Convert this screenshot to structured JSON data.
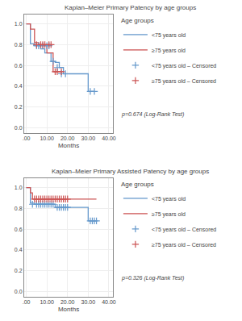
{
  "chart_data": [
    {
      "type": "step",
      "title": "Kaplan–Meier Primary Patency by age groups",
      "xlabel": "Months",
      "xlim": [
        -1,
        42
      ],
      "ylim": [
        -0.05,
        1.09
      ],
      "xticks": [
        {
          "value": 0,
          "label": ".00"
        },
        {
          "value": 10,
          "label": "10.00"
        },
        {
          "value": 20,
          "label": "20.00"
        },
        {
          "value": 30,
          "label": "30.00"
        },
        {
          "value": 40,
          "label": "40.00"
        }
      ],
      "yticks": [
        {
          "value": 0.0,
          "label": "0.0"
        },
        0.2,
        0.4,
        0.6,
        0.8,
        {
          "value": 1.0,
          "label": "1.0"
        }
      ],
      "grid": true,
      "legend": "right",
      "legend_title": "Age groups",
      "annotations": [
        "p=0.674 (Log-Rank Test)"
      ],
      "series": [
        {
          "name": "<75 years old",
          "color": "#6699CC",
          "x": [
            0,
            2,
            4,
            7,
            9,
            12,
            14,
            16,
            18,
            30,
            33
          ],
          "values": [
            1.0,
            0.81,
            0.79,
            0.76,
            0.72,
            0.64,
            0.63,
            0.58,
            0.52,
            0.35,
            0.35
          ]
        },
        {
          "name": "≥75 years old",
          "color": "#CC5555",
          "x": [
            0,
            2,
            4,
            6,
            10,
            13,
            16,
            18
          ],
          "values": [
            1.0,
            0.95,
            0.82,
            0.8,
            0.72,
            0.54,
            0.54,
            0.54
          ]
        },
        {
          "name": "<75 years old – Censored",
          "color": "#6699CC",
          "type": "scatter",
          "marker": "cross",
          "x": [
            5,
            6,
            8,
            10,
            11,
            13,
            15,
            17,
            19,
            31,
            33
          ],
          "values": [
            0.79,
            0.79,
            0.79,
            0.79,
            0.79,
            0.64,
            0.58,
            0.52,
            0.52,
            0.35,
            0.35
          ]
        },
        {
          "name": "≥75 years old – Censored",
          "color": "#CC5555",
          "type": "scatter",
          "marker": "cross",
          "x": [
            5,
            7,
            8,
            9,
            11,
            12,
            14,
            15,
            17
          ],
          "values": [
            0.8,
            0.8,
            0.8,
            0.8,
            0.8,
            0.8,
            0.54,
            0.54,
            0.54
          ]
        }
      ]
    },
    {
      "type": "step",
      "title": "Kaplan–Meier Primary Assisted Patency by age groups",
      "xlabel": "Months",
      "xlim": [
        -1,
        42
      ],
      "ylim": [
        -0.05,
        1.09
      ],
      "xticks": [
        {
          "value": 0,
          "label": ".00"
        },
        {
          "value": 10,
          "label": "10.00"
        },
        {
          "value": 20,
          "label": "20.00"
        },
        {
          "value": 30,
          "label": "30.00"
        },
        {
          "value": 40,
          "label": "40.00"
        }
      ],
      "yticks": [
        {
          "value": 0.0,
          "label": "0.0"
        },
        0.2,
        0.4,
        0.6,
        0.8,
        {
          "value": 1.0,
          "label": "1.0"
        }
      ],
      "grid": true,
      "legend": "right",
      "legend_title": "Age groups",
      "annotations": [
        "p=0.326 (Log-Rank Test)"
      ],
      "series": [
        {
          "name": "<75 years old",
          "color": "#6699CC",
          "x": [
            0,
            2,
            4,
            14,
            30,
            34
          ],
          "values": [
            1.0,
            0.85,
            0.84,
            0.81,
            0.68,
            0.68
          ]
        },
        {
          "name": "≥75 years old",
          "color": "#CC5555",
          "x": [
            0,
            2,
            3,
            34
          ],
          "values": [
            1.0,
            0.95,
            0.89,
            0.89
          ]
        },
        {
          "name": "<75 years old – Censored",
          "color": "#6699CC",
          "type": "scatter",
          "marker": "cross",
          "x": [
            3,
            5,
            6,
            7,
            8,
            9,
            10,
            11,
            12,
            13,
            15,
            16,
            17,
            18,
            19,
            20,
            31,
            32,
            33,
            34
          ],
          "values": [
            0.84,
            0.84,
            0.84,
            0.84,
            0.84,
            0.84,
            0.84,
            0.84,
            0.84,
            0.84,
            0.81,
            0.81,
            0.81,
            0.81,
            0.81,
            0.81,
            0.68,
            0.68,
            0.68,
            0.68
          ]
        },
        {
          "name": "≥75 years old – Censored",
          "color": "#CC5555",
          "type": "scatter",
          "marker": "cross",
          "x": [
            4,
            5,
            6,
            7,
            8,
            9,
            10,
            11,
            12,
            13,
            14,
            15,
            16,
            17,
            18,
            19,
            20
          ],
          "values": [
            0.89,
            0.89,
            0.89,
            0.89,
            0.89,
            0.89,
            0.89,
            0.89,
            0.89,
            0.89,
            0.89,
            0.89,
            0.89,
            0.89,
            0.89,
            0.89,
            0.89
          ]
        }
      ]
    }
  ]
}
